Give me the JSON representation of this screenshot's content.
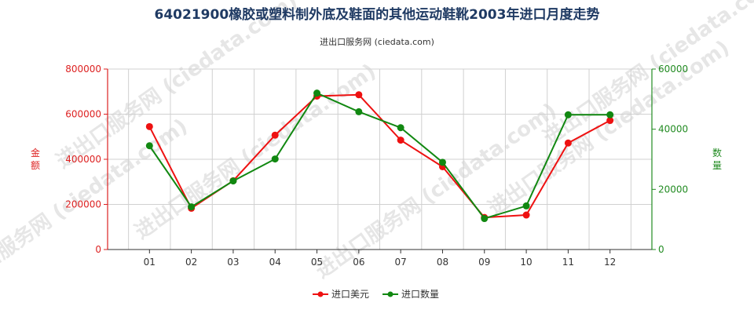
{
  "chart_data": {
    "type": "line",
    "title": "64021900橡胶或塑料制外底及鞋面的其他运动鞋靴2003年进口月度走势",
    "subtitle": "进出口服务网 (ciedata.com)",
    "watermark": "进出口服务网 (ciedata.com)",
    "categories": [
      "01",
      "02",
      "03",
      "04",
      "05",
      "06",
      "07",
      "08",
      "09",
      "10",
      "11",
      "12"
    ],
    "y_left": {
      "label": "金额",
      "ylim": [
        0,
        800000
      ],
      "ticks": [
        "0",
        "200000",
        "400000",
        "600000",
        "800000"
      ],
      "color": "#dd2222"
    },
    "y_right": {
      "label": "数量",
      "ylim": [
        0,
        60000
      ],
      "ticks": [
        "0",
        "20000",
        "40000",
        "60000"
      ],
      "color": "#228b22"
    },
    "series": [
      {
        "name": "进口美元",
        "axis": "left",
        "color": "#ee1111",
        "values": [
          545000,
          183000,
          305000,
          507000,
          680000,
          686000,
          485000,
          367000,
          142000,
          153000,
          472000,
          572000
        ]
      },
      {
        "name": "进口数量",
        "axis": "right",
        "color": "#118811",
        "values": [
          34500,
          14200,
          22800,
          30100,
          52000,
          45800,
          40500,
          29000,
          10300,
          14500,
          44800,
          44800
        ]
      }
    ],
    "grid": true,
    "legend_position": "bottom-center"
  }
}
